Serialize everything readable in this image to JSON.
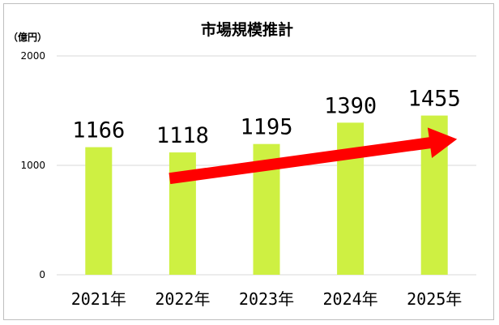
{
  "chart_data": {
    "type": "bar",
    "title": "市場規模推計",
    "unit_label": "（億円）",
    "categories": [
      "2021年",
      "2022年",
      "2023年",
      "2024年",
      "2025年"
    ],
    "values": [
      1166,
      1118,
      1195,
      1390,
      1455
    ],
    "data_labels": [
      "1166",
      "1118",
      "1195",
      "1390",
      "1455"
    ],
    "ylim": [
      0,
      2000
    ],
    "yticks": [
      0,
      1000,
      2000
    ],
    "ytick_labels": [
      "0",
      "1000",
      "2000"
    ],
    "grid": true,
    "legend": "none",
    "bar_color": "#cef042",
    "gridline_color": "#d9d9d9",
    "annotation": {
      "type": "arrow",
      "color": "#ff0000",
      "from_category": "2022年",
      "from_value": 880,
      "to_category": "2025年",
      "to_value": 1240
    }
  }
}
